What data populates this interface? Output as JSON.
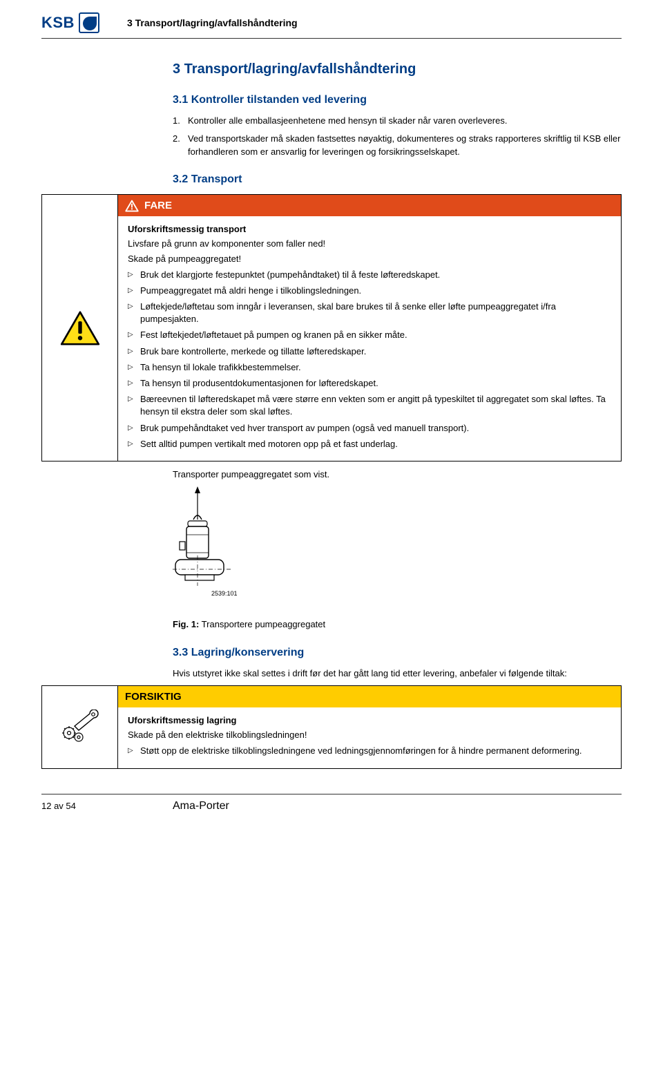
{
  "header": {
    "logo_text": "KSB",
    "breadcrumb": "3 Transport/lagring/avfallshåndtering"
  },
  "h1": "3 Transport/lagring/avfallshåndtering",
  "s31": {
    "title": "3.1 Kontroller tilstanden ved levering",
    "items": [
      "Kontroller alle emballasjeenhetene med hensyn til skader når varen overleveres.",
      "Ved transportskader må skaden fastsettes nøyaktig, dokumenteres og straks rapporteres skriftlig til KSB eller forhandleren som er ansvarlig for leveringen og forsikringsselskapet."
    ]
  },
  "s32": {
    "title": "3.2 Transport",
    "warn_label": "FARE",
    "warn_title": "Uforskriftsmessig transport",
    "warn_line1": "Livsfare på grunn av komponenter som faller ned!",
    "warn_line2": "Skade på pumpeaggregatet!",
    "bullets": [
      "Bruk det klargjorte festepunktet (pumpehåndtaket) til å feste løfteredskapet.",
      "Pumpeaggregatet må aldri henge i tilkoblingsledningen.",
      "Løftekjede/løftetau som inngår i leveransen, skal bare brukes til å senke eller løfte pumpeaggregatet i/fra pumpesjakten.",
      "Fest løftekjedet/løftetauet på pumpen og kranen på en sikker måte.",
      "Bruk bare kontrollerte, merkede og tillatte løfteredskaper.",
      "Ta hensyn til lokale trafikkbestemmelser.",
      "Ta hensyn til produsentdokumentasjonen for løfteredskapet.",
      "Bæreevnen til løfteredskapet må være større enn vekten som er angitt på typeskiltet til aggregatet som skal løftes. Ta hensyn til ekstra deler som skal løftes.",
      "Bruk pumpehåndtaket ved hver transport av pumpen (også ved manuell transport).",
      "Sett alltid pumpen vertikalt med motoren opp på et fast underlag."
    ],
    "after_warn": "Transporter pumpeaggregatet som vist.",
    "fig_num": "2539:101",
    "fig_label": "Fig. 1:",
    "fig_caption": "Transportere pumpeaggregatet"
  },
  "s33": {
    "title": "3.3 Lagring/konservering",
    "intro": "Hvis utstyret ikke skal settes i drift før det har gått lang tid etter levering, anbefaler vi følgende tiltak:",
    "warn_label": "FORSIKTIG",
    "warn_title": "Uforskriftsmessig lagring",
    "warn_line1": "Skade på den elektriske tilkoblingsledningen!",
    "bullets": [
      "Støtt opp de elektriske tilkoblingsledningene ved ledningsgjennomføringen for å hindre permanent deformering."
    ]
  },
  "footer": {
    "page": "12 av 54",
    "doc": "Ama-Porter"
  },
  "colors": {
    "brand": "#003d85",
    "danger_bg": "#e04b1a",
    "caution_bg": "#ffcc00",
    "warn_triangle_fill": "#ffde17",
    "warn_triangle_border": "#000000"
  }
}
